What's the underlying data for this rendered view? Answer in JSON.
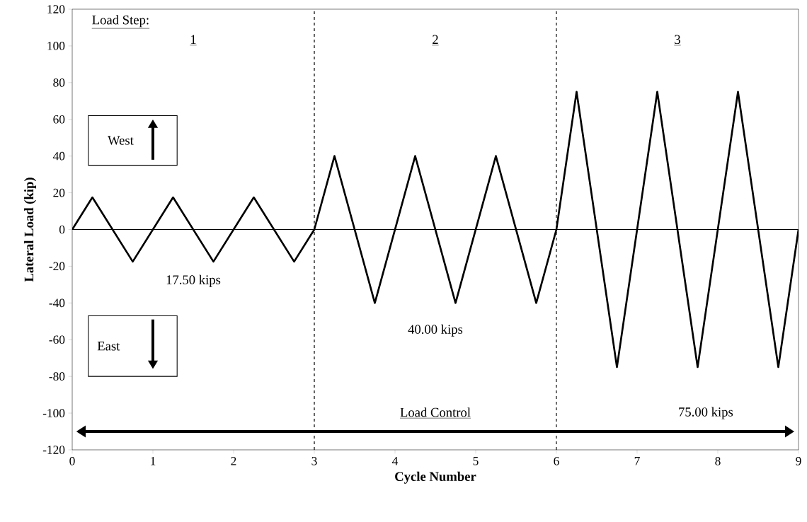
{
  "chart_data": {
    "type": "line",
    "xlabel": "Cycle Number",
    "ylabel": "Lateral Load (kip)",
    "x": [
      0,
      0.25,
      0.75,
      1.25,
      1.75,
      2.25,
      2.75,
      3,
      3.25,
      3.75,
      4.25,
      4.75,
      5.25,
      5.75,
      6,
      6.25,
      6.75,
      7.25,
      7.75,
      8.25,
      8.75,
      9
    ],
    "series": [
      {
        "color": "#000000",
        "values": [
          0,
          17.5,
          -17.5,
          17.5,
          -17.5,
          17.5,
          -17.5,
          0,
          40,
          -40,
          40,
          -40,
          40,
          -40,
          0,
          75,
          -75,
          75,
          -75,
          75,
          -75,
          0
        ]
      }
    ],
    "xlim": [
      0,
      9
    ],
    "ylim": [
      -120,
      120
    ],
    "xticks": [
      0,
      1,
      2,
      3,
      4,
      5,
      6,
      7,
      8,
      9
    ],
    "yticks": [
      -120,
      -100,
      -80,
      -60,
      -40,
      -20,
      0,
      20,
      40,
      60,
      80,
      100,
      120
    ],
    "grid": false,
    "marker": "none",
    "line_style": "solid",
    "ref_lines": [
      {
        "axis": "y",
        "value": 0,
        "color": "#000000",
        "line_style": "solid"
      },
      {
        "axis": "x",
        "value": 3,
        "color": "#000000",
        "line_style": "dashed"
      },
      {
        "axis": "x",
        "value": 6,
        "color": "#000000",
        "line_style": "dashed"
      }
    ],
    "annotations": [
      "Load Step:",
      "1",
      "2",
      "3",
      "17.50 kips",
      "40.00 kips",
      "75.00 kips",
      "Load Control",
      "West",
      "East"
    ]
  }
}
